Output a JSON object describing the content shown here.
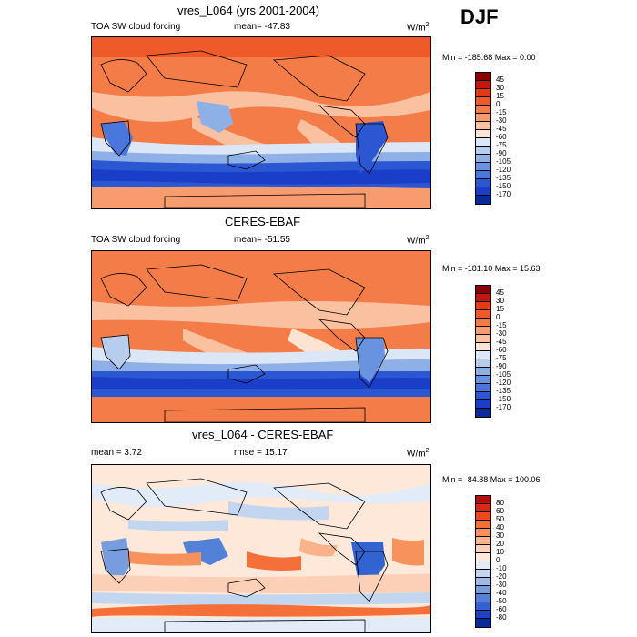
{
  "season": "DJF",
  "panels": [
    {
      "title": "vres_L064 (yrs 2001-2004)",
      "left_label": "TOA SW cloud forcing",
      "center_label": "mean= -47.83",
      "unit_base": "W/m",
      "unit_exp": "2",
      "minmax": "Min = -185.68 Max =   0.00",
      "levels": [
        "45",
        "30",
        "15",
        "0",
        "-15",
        "-30",
        "-45",
        "-60",
        "-75",
        "-90",
        "-105",
        "-120",
        "-135",
        "-150",
        "-170"
      ],
      "colors": [
        "#8b0000",
        "#c2180f",
        "#e23b18",
        "#ef5a2a",
        "#f47c48",
        "#f79c6f",
        "#fac1a0",
        "#fde4d2",
        "#dbe6f6",
        "#b7cdee",
        "#8fb0e6",
        "#6a93df",
        "#4b76db",
        "#2c57d3",
        "#1a3ec8",
        "#0a2a9c"
      ]
    },
    {
      "title": "CERES-EBAF",
      "left_label": "TOA SW cloud forcing",
      "center_label": "mean= -51.55",
      "unit_base": "W/m",
      "unit_exp": "2",
      "minmax": "Min = -181.10 Max =  15.63",
      "levels": [
        "45",
        "30",
        "15",
        "0",
        "-15",
        "-30",
        "-45",
        "-60",
        "-75",
        "-90",
        "-105",
        "-120",
        "-135",
        "-150",
        "-170"
      ],
      "colors": [
        "#8b0000",
        "#c2180f",
        "#e23b18",
        "#ef5a2a",
        "#f47c48",
        "#f79c6f",
        "#fac1a0",
        "#fde4d2",
        "#dbe6f6",
        "#b7cdee",
        "#8fb0e6",
        "#6a93df",
        "#4b76db",
        "#2c57d3",
        "#1a3ec8",
        "#0a2a9c"
      ]
    },
    {
      "title": "vres_L064 - CERES-EBAF",
      "left_label": "mean =   3.72",
      "center_label": "rmse =  15.17",
      "unit_base": "W/m",
      "unit_exp": "2",
      "minmax": "Min = -84.88 Max = 100.06",
      "levels": [
        "80",
        "60",
        "50",
        "40",
        "30",
        "20",
        "10",
        "0",
        "-10",
        "-20",
        "-30",
        "-40",
        "-50",
        "-60",
        "-80"
      ],
      "colors": [
        "#b40f0a",
        "#d92a12",
        "#ef4a1e",
        "#f57038",
        "#f8925c",
        "#fab28a",
        "#fcd0b6",
        "#fee8da",
        "#e2ecf8",
        "#c2d6f0",
        "#9dbbe7",
        "#779ddf",
        "#5481d8",
        "#3362d1",
        "#1b44c4",
        "#0a2a9c"
      ]
    }
  ]
}
